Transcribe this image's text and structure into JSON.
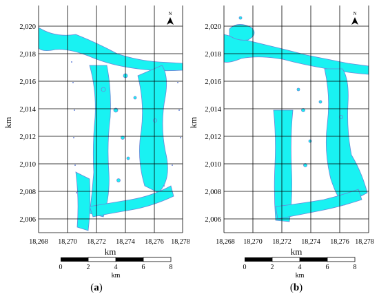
{
  "x_ticks": [
    "18,268",
    "18,270",
    "18,272",
    "18,274",
    "18,276",
    "18,278"
  ],
  "y_ticks": [
    "2,020",
    "2,018",
    "2,016",
    "2,014",
    "2,012",
    "2,010",
    "2,008",
    "2,006"
  ],
  "x_axis_label": "km",
  "y_axis_label": "km",
  "north_label": "N",
  "scale_bar": {
    "ticks": [
      "0",
      "2",
      "4",
      "6",
      "8"
    ],
    "unit": "km"
  },
  "colors": {
    "water": "#19f2f2",
    "water_edge": "#6b86d8",
    "grid": "#000000"
  },
  "panels": [
    {
      "id": "a",
      "caption_open": "(",
      "caption_letter": "a",
      "caption_close": ")"
    },
    {
      "id": "b",
      "caption_open": "(",
      "caption_letter": "b",
      "caption_close": ")"
    }
  ]
}
